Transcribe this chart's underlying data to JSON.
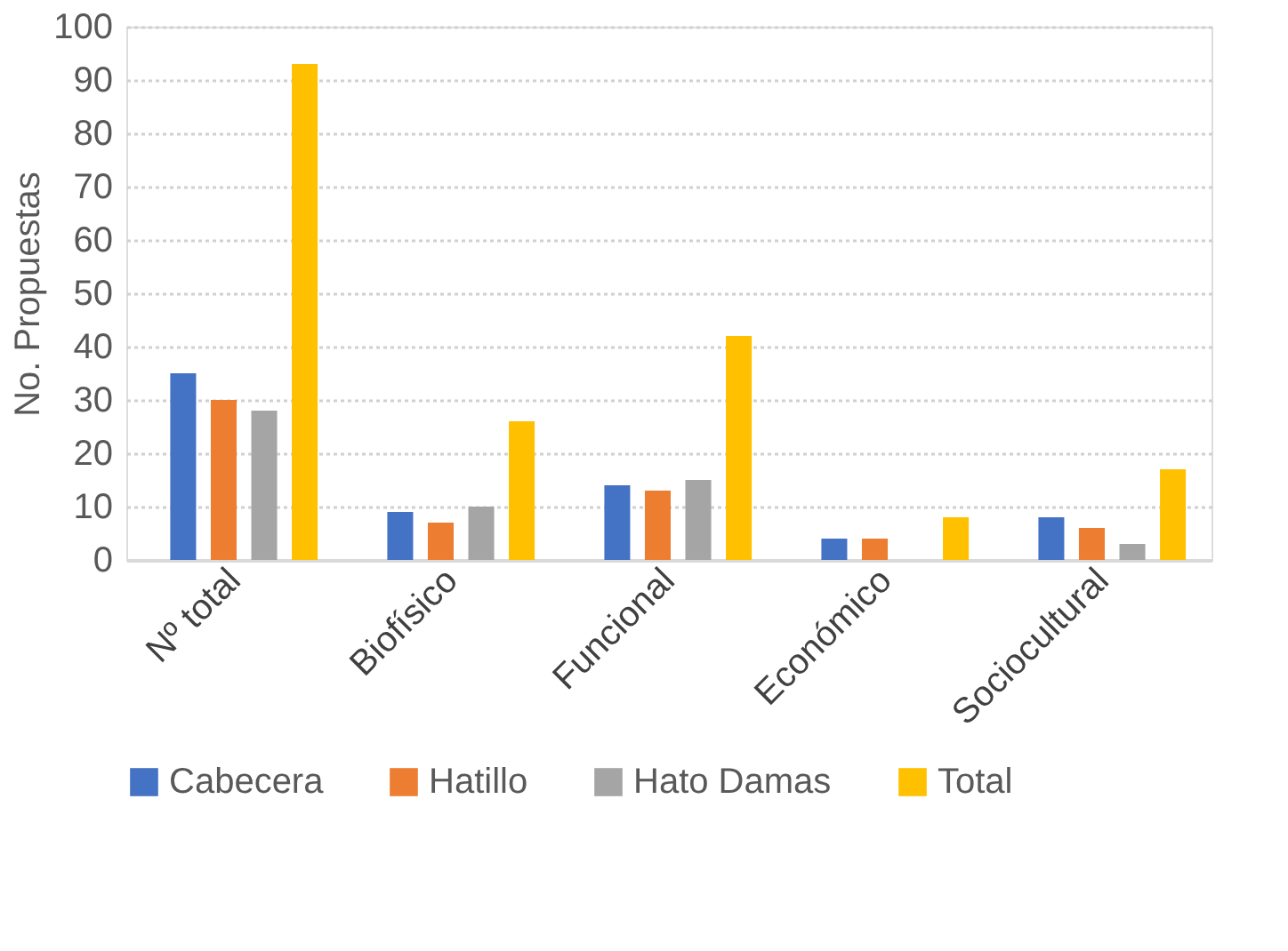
{
  "chart_data": {
    "type": "bar",
    "ylabel": "No. Propuestas",
    "categories": [
      "Nº total",
      "Biofísico",
      "Funcional",
      "Económico",
      "Sociocultural"
    ],
    "series": [
      {
        "name": "Cabecera",
        "color": "#4472c4",
        "values": [
          35,
          9,
          14,
          4,
          8
        ]
      },
      {
        "name": "Hatillo",
        "color": "#ed7d31",
        "values": [
          30,
          7,
          13,
          4,
          6
        ]
      },
      {
        "name": "Hato Damas",
        "color": "#a5a5a5",
        "values": [
          28,
          10,
          15,
          0,
          3
        ]
      },
      {
        "name": "Total",
        "color": "#ffc000",
        "values": [
          93,
          26,
          42,
          8,
          17
        ]
      }
    ],
    "ylim": [
      0,
      100
    ],
    "yticks": [
      0,
      10,
      20,
      30,
      40,
      50,
      60,
      70,
      80,
      90,
      100
    ],
    "grid": "y",
    "legend": "bottom"
  }
}
